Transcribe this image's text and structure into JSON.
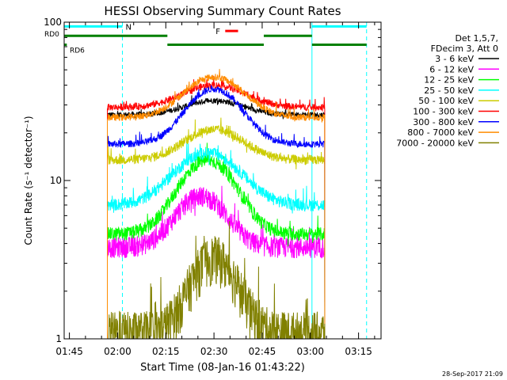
{
  "chart_data": {
    "type": "line",
    "title": "HESSI Observing Summary Count Rates",
    "xlabel": "Start Time (08-Jan-16 01:43:22)",
    "ylabel": "Count Rate (s⁻¹ detector⁻¹)",
    "y_scale": "log",
    "ylim": [
      1,
      100
    ],
    "xlim_minutes": [
      103.37,
      202
    ],
    "x_ticks": [
      {
        "label": "01:45",
        "min": 105
      },
      {
        "label": "02:00",
        "min": 120
      },
      {
        "label": "02:15",
        "min": 135
      },
      {
        "label": "02:30",
        "min": 150
      },
      {
        "label": "02:45",
        "min": 165
      },
      {
        "label": "03:00",
        "min": 180
      },
      {
        "label": "03:15",
        "min": 195
      }
    ],
    "y_ticks": [
      {
        "label": "1",
        "value": 1
      },
      {
        "label": "10",
        "value": 10
      },
      {
        "label": "100",
        "value": 100
      }
    ],
    "legend_header": [
      "Det 1,5,7,",
      "FDecim 3, Att 0"
    ],
    "legend_position": "right",
    "data_start_min": 116.8,
    "data_end_min": 184.5,
    "series": [
      {
        "name": "3 - 6 keV",
        "color": "#000000",
        "baseline": 26,
        "peak": 32,
        "peak_min": 150,
        "width": 12,
        "noise": 0.04
      },
      {
        "name": "6 - 12 keV",
        "color": "#ff00ff",
        "baseline": 3.8,
        "peak": 8,
        "peak_min": 146,
        "width": 10,
        "noise": 0.15
      },
      {
        "name": "12 - 25 keV",
        "color": "#00ff00",
        "baseline": 4.6,
        "peak": 13.5,
        "peak_min": 148,
        "width": 11,
        "noise": 0.1
      },
      {
        "name": "25 - 50 keV",
        "color": "#00ffff",
        "baseline": 7,
        "peak": 15,
        "peak_min": 148,
        "width": 13,
        "noise": 0.09
      },
      {
        "name": "50 - 100 keV",
        "color": "#cccc00",
        "baseline": 13.5,
        "peak": 21,
        "peak_min": 150,
        "width": 12,
        "noise": 0.07
      },
      {
        "name": "100 - 300 keV",
        "color": "#ff0000",
        "baseline": 29,
        "peak": 40,
        "peak_min": 150,
        "width": 13,
        "noise": 0.05
      },
      {
        "name": "300 - 800 keV",
        "color": "#0000ff",
        "baseline": 17,
        "peak": 38,
        "peak_min": 150,
        "width": 11,
        "noise": 0.05
      },
      {
        "name": "800 - 7000 keV",
        "color": "#ff8c00",
        "baseline": 25,
        "peak": 45,
        "peak_min": 150,
        "width": 12,
        "noise": 0.05
      },
      {
        "name": "7000 - 20000 keV",
        "color": "#808000",
        "baseline": 1.1,
        "peak": 3.3,
        "peak_min": 150,
        "width": 9,
        "noise": 0.35
      }
    ],
    "state_bars": [
      {
        "label": "N",
        "color": "#00ffff",
        "level": 94,
        "segments": [
          [
            103.37,
            121.5
          ],
          [
            180.5,
            197.5
          ]
        ]
      },
      {
        "label": "RD0",
        "color": "#008000",
        "level": 82,
        "segments": [
          [
            103.37,
            135.5
          ],
          [
            165.5,
            180.5
          ]
        ]
      },
      {
        "label": "RD6",
        "color": "#008000",
        "level": 72,
        "segments": [
          [
            103.37,
            104.2
          ],
          [
            135.5,
            165.5
          ],
          [
            180.5,
            197.5
          ]
        ]
      },
      {
        "label": "F",
        "color": "#ff0000",
        "level": 88,
        "segments": [
          [
            153.5,
            157.5
          ]
        ]
      }
    ],
    "vlines": [
      {
        "min": 121.5,
        "color": "#00ffff",
        "dashed": true
      },
      {
        "min": 180.5,
        "color": "#00ffff",
        "dashed": false
      },
      {
        "min": 197.5,
        "color": "#00ffff",
        "dashed": true
      }
    ]
  },
  "footer": {
    "timestamp": "28-Sep-2017 21:09"
  }
}
